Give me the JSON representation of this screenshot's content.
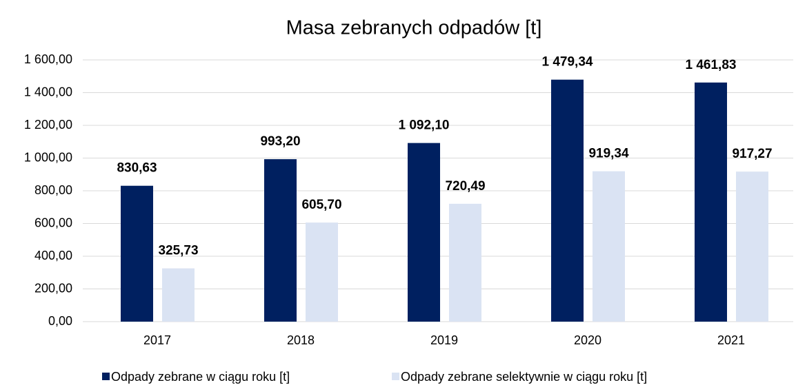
{
  "chart_data": {
    "type": "bar",
    "title": "Masa zebranych odpadów [t]",
    "categories": [
      "2017",
      "2018",
      "2019",
      "2020",
      "2021"
    ],
    "series": [
      {
        "name": "Odpady zebrane w ciągu roku [t]",
        "color": "#002060",
        "values": [
          830.63,
          993.2,
          1092.1,
          1479.34,
          1461.83
        ],
        "value_labels": [
          "830,63",
          "993,20",
          "1 092,10",
          "1 479,34",
          "1 461,83"
        ]
      },
      {
        "name": "Odpady zebrane selektywnie w ciągu roku [t]",
        "color": "#dae3f3",
        "values": [
          325.73,
          605.7,
          720.49,
          919.34,
          917.27
        ],
        "value_labels": [
          "325,73",
          "605,70",
          "720,49",
          "919,34",
          "917,27"
        ]
      }
    ],
    "ylim": [
      0,
      1600
    ],
    "yticks": [
      {
        "value": 0,
        "label": "0,00"
      },
      {
        "value": 200,
        "label": "200,00"
      },
      {
        "value": 400,
        "label": "400,00"
      },
      {
        "value": 600,
        "label": "600,00"
      },
      {
        "value": 800,
        "label": "800,00"
      },
      {
        "value": 1000,
        "label": "1 000,00"
      },
      {
        "value": 1200,
        "label": "1 200,00"
      },
      {
        "value": 1400,
        "label": "1 400,00"
      },
      {
        "value": 1600,
        "label": "1 600,00"
      }
    ],
    "grid": true,
    "legend": "bottom"
  }
}
